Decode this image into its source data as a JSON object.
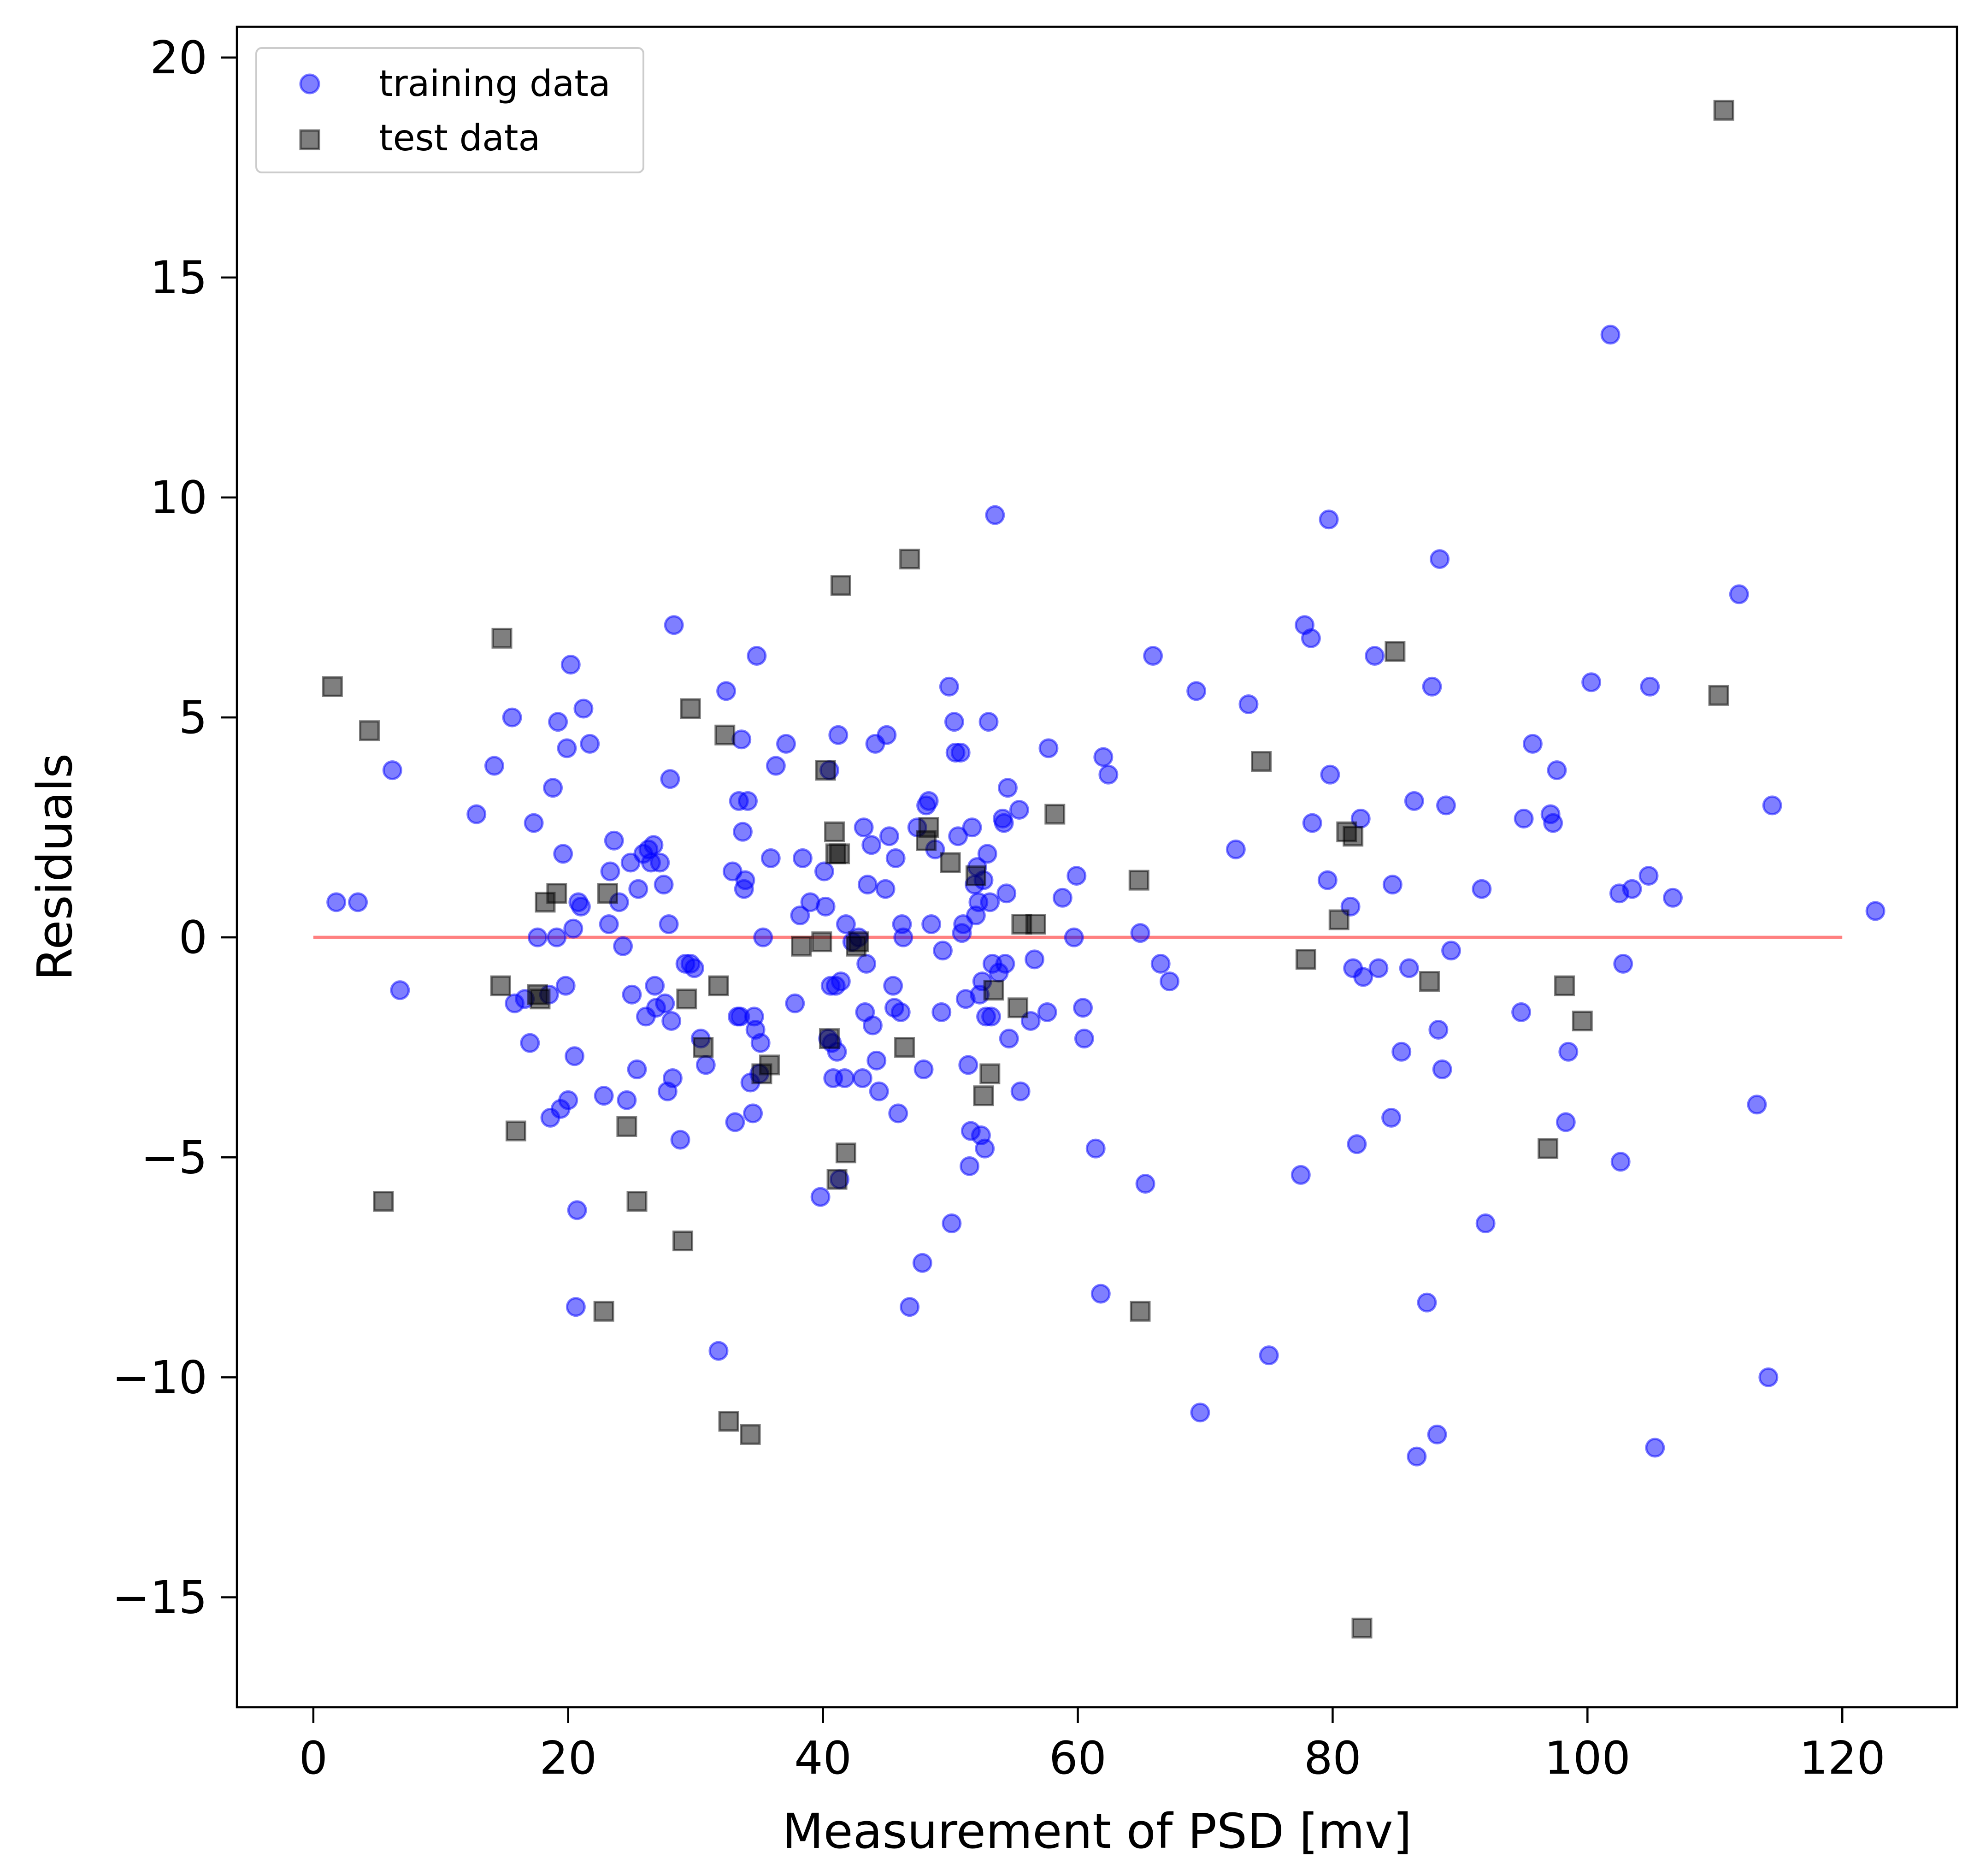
{
  "chart_data": {
    "type": "scatter",
    "title": "",
    "xlabel": "Measurement of PSD [mv]",
    "ylabel": "Residuals",
    "xlim": [
      -6,
      129
    ],
    "ylim": [
      -17.5,
      20.7
    ],
    "xticks": [
      0,
      20,
      40,
      60,
      80,
      100,
      120
    ],
    "yticks": [
      -15,
      -10,
      -5,
      0,
      5,
      10,
      15,
      20
    ],
    "xtick_labels": [
      "0",
      "20",
      "40",
      "60",
      "80",
      "100",
      "120"
    ],
    "ytick_labels": [
      "−15",
      "−10",
      "−5",
      "0",
      "5",
      "10",
      "15",
      "20"
    ],
    "grid": false,
    "legend_position": "top-left",
    "reference_line": {
      "y": 0,
      "x_from": 0,
      "x_to": 120,
      "color": "#ff8080"
    },
    "series": [
      {
        "name": "training data",
        "marker": "circle",
        "color": "#0000ff",
        "points": [
          [
            1.8,
            0.8
          ],
          [
            3.5,
            0.8
          ],
          [
            6.2,
            3.8
          ],
          [
            6.8,
            -1.2
          ],
          [
            12.8,
            2.8
          ],
          [
            14.2,
            3.9
          ],
          [
            15.6,
            5
          ],
          [
            15.8,
            -1.5
          ],
          [
            16.6,
            -1.4
          ],
          [
            17,
            -2.4
          ],
          [
            17.3,
            2.6
          ],
          [
            17.6,
            0
          ],
          [
            18.5,
            -1.3
          ],
          [
            18.6,
            -4.1
          ],
          [
            18.8,
            3.4
          ],
          [
            19.1,
            0
          ],
          [
            19.2,
            4.9
          ],
          [
            19.4,
            -3.9
          ],
          [
            19.6,
            1.9
          ],
          [
            19.8,
            -1.1
          ],
          [
            19.9,
            4.3
          ],
          [
            20,
            -3.7
          ],
          [
            20.2,
            6.2
          ],
          [
            20.4,
            0.2
          ],
          [
            20.5,
            -2.7
          ],
          [
            20.6,
            -8.4
          ],
          [
            20.7,
            -6.2
          ],
          [
            20.8,
            0.8
          ],
          [
            21,
            0.7
          ],
          [
            21.2,
            5.2
          ],
          [
            21.7,
            4.4
          ],
          [
            22.8,
            -3.6
          ],
          [
            23.2,
            0.3
          ],
          [
            23.3,
            1.5
          ],
          [
            23.6,
            2.2
          ],
          [
            24,
            0.8
          ],
          [
            24.3,
            -0.2
          ],
          [
            24.6,
            -3.7
          ],
          [
            24.9,
            1.7
          ],
          [
            25,
            -1.3
          ],
          [
            25.4,
            -3
          ],
          [
            25.5,
            1.1
          ],
          [
            25.9,
            1.9
          ],
          [
            26.1,
            -1.8
          ],
          [
            26.3,
            2
          ],
          [
            26.5,
            1.7
          ],
          [
            26.7,
            2.1
          ],
          [
            26.8,
            -1.1
          ],
          [
            26.9,
            -1.6
          ],
          [
            27.2,
            1.7
          ],
          [
            27.5,
            1.2
          ],
          [
            27.6,
            -1.5
          ],
          [
            27.8,
            -3.5
          ],
          [
            27.9,
            0.3
          ],
          [
            28,
            3.6
          ],
          [
            28.1,
            -1.9
          ],
          [
            28.2,
            -3.2
          ],
          [
            28.3,
            7.1
          ],
          [
            28.8,
            -4.6
          ],
          [
            29.2,
            -0.6
          ],
          [
            29.6,
            -0.6
          ],
          [
            29.9,
            -0.7
          ],
          [
            30.4,
            -2.3
          ],
          [
            30.8,
            -2.9
          ],
          [
            31.8,
            -9.4
          ],
          [
            32.4,
            5.6
          ],
          [
            32.9,
            1.5
          ],
          [
            33.1,
            -4.2
          ],
          [
            33.3,
            -1.8
          ],
          [
            33.4,
            3.1
          ],
          [
            33.5,
            -1.8
          ],
          [
            33.6,
            4.5
          ],
          [
            33.7,
            2.4
          ],
          [
            33.8,
            1.1
          ],
          [
            33.9,
            1.3
          ],
          [
            34.1,
            3.1
          ],
          [
            34.3,
            -3.3
          ],
          [
            34.5,
            -4
          ],
          [
            34.6,
            -1.8
          ],
          [
            34.7,
            -2.1
          ],
          [
            34.8,
            6.4
          ],
          [
            35,
            -3.1
          ],
          [
            35.1,
            -2.4
          ],
          [
            35.3,
            0
          ],
          [
            35.9,
            1.8
          ],
          [
            36.3,
            3.9
          ],
          [
            37.1,
            4.4
          ],
          [
            37.8,
            -1.5
          ],
          [
            38.2,
            0.5
          ],
          [
            38.4,
            1.8
          ],
          [
            39,
            0.8
          ],
          [
            39.8,
            -5.9
          ],
          [
            40.1,
            1.5
          ],
          [
            40.2,
            0.7
          ],
          [
            40.4,
            -2.3
          ],
          [
            40.5,
            3.8
          ],
          [
            40.6,
            -1.1
          ],
          [
            40.7,
            -2.4
          ],
          [
            40.8,
            -3.2
          ],
          [
            41,
            -1.1
          ],
          [
            41.1,
            -2.6
          ],
          [
            41.2,
            4.6
          ],
          [
            41.3,
            -5.5
          ],
          [
            41.4,
            -1
          ],
          [
            41.7,
            -3.2
          ],
          [
            41.8,
            0.3
          ],
          [
            42.3,
            -0.1
          ],
          [
            42.8,
            0
          ],
          [
            43.1,
            -3.2
          ],
          [
            43.2,
            2.5
          ],
          [
            43.3,
            -1.7
          ],
          [
            43.4,
            -0.6
          ],
          [
            43.5,
            1.2
          ],
          [
            43.8,
            2.1
          ],
          [
            43.9,
            -2
          ],
          [
            44.1,
            4.4
          ],
          [
            44.2,
            -2.8
          ],
          [
            44.4,
            -3.5
          ],
          [
            44.9,
            1.1
          ],
          [
            45,
            4.6
          ],
          [
            45.2,
            2.3
          ],
          [
            45.5,
            -1.1
          ],
          [
            45.6,
            -1.6
          ],
          [
            45.7,
            1.8
          ],
          [
            45.9,
            -4
          ],
          [
            46.1,
            -1.7
          ],
          [
            46.2,
            0.3
          ],
          [
            46.3,
            0
          ],
          [
            46.8,
            -8.4
          ],
          [
            47.4,
            2.5
          ],
          [
            47.8,
            -7.4
          ],
          [
            47.9,
            -3
          ],
          [
            48.1,
            3
          ],
          [
            48.3,
            3.1
          ],
          [
            48.5,
            0.3
          ],
          [
            48.8,
            2
          ],
          [
            49.3,
            -1.7
          ],
          [
            49.4,
            -0.3
          ],
          [
            49.9,
            5.7
          ],
          [
            50.1,
            -6.5
          ],
          [
            50.3,
            4.9
          ],
          [
            50.4,
            4.2
          ],
          [
            50.6,
            2.3
          ],
          [
            50.8,
            4.2
          ],
          [
            50.9,
            0.1
          ],
          [
            51,
            0.3
          ],
          [
            51.2,
            -1.4
          ],
          [
            51.4,
            -2.9
          ],
          [
            51.5,
            -5.2
          ],
          [
            51.6,
            -4.4
          ],
          [
            51.7,
            2.5
          ],
          [
            51.9,
            1.2
          ],
          [
            52,
            0.5
          ],
          [
            52.1,
            1.6
          ],
          [
            52.2,
            0.8
          ],
          [
            52.3,
            -1.3
          ],
          [
            52.4,
            -4.5
          ],
          [
            52.5,
            -1
          ],
          [
            52.6,
            1.3
          ],
          [
            52.7,
            -4.8
          ],
          [
            52.8,
            -1.8
          ],
          [
            52.9,
            1.9
          ],
          [
            53,
            4.9
          ],
          [
            53.1,
            0.8
          ],
          [
            53.2,
            -1.8
          ],
          [
            53.3,
            -0.6
          ],
          [
            53.5,
            9.6
          ],
          [
            53.8,
            -0.8
          ],
          [
            54.1,
            2.7
          ],
          [
            54.2,
            2.6
          ],
          [
            54.3,
            -0.6
          ],
          [
            54.4,
            1
          ],
          [
            54.5,
            3.4
          ],
          [
            54.6,
            -2.3
          ],
          [
            55.4,
            2.9
          ],
          [
            55.5,
            -3.5
          ],
          [
            56.3,
            -1.9
          ],
          [
            56.6,
            -0.5
          ],
          [
            57.6,
            -1.7
          ],
          [
            57.7,
            4.3
          ],
          [
            58.8,
            0.9
          ],
          [
            59.7,
            0
          ],
          [
            59.9,
            1.4
          ],
          [
            60.4,
            -1.6
          ],
          [
            60.5,
            -2.3
          ],
          [
            61.4,
            -4.8
          ],
          [
            61.8,
            -8.1
          ],
          [
            62,
            4.1
          ],
          [
            62.4,
            3.7
          ],
          [
            64.9,
            0.1
          ],
          [
            65.3,
            -5.6
          ],
          [
            65.9,
            6.4
          ],
          [
            66.5,
            -0.6
          ],
          [
            67.2,
            -1
          ],
          [
            69.3,
            5.6
          ],
          [
            69.6,
            -10.8
          ],
          [
            72.4,
            2
          ],
          [
            73.4,
            5.3
          ],
          [
            75,
            -9.5
          ],
          [
            77.5,
            -5.4
          ],
          [
            77.8,
            7.1
          ],
          [
            78.3,
            6.8
          ],
          [
            78.4,
            2.6
          ],
          [
            79.6,
            1.3
          ],
          [
            79.7,
            9.5
          ],
          [
            79.8,
            3.7
          ],
          [
            81.4,
            0.7
          ],
          [
            81.6,
            -0.7
          ],
          [
            81.9,
            -4.7
          ],
          [
            82.2,
            2.7
          ],
          [
            82.4,
            -0.9
          ],
          [
            83.3,
            6.4
          ],
          [
            83.6,
            -0.7
          ],
          [
            84.6,
            -4.1
          ],
          [
            84.7,
            1.2
          ],
          [
            85.4,
            -2.6
          ],
          [
            86,
            -0.7
          ],
          [
            86.4,
            3.1
          ],
          [
            86.6,
            -11.8
          ],
          [
            87.4,
            -8.3
          ],
          [
            87.8,
            5.7
          ],
          [
            88.2,
            -11.3
          ],
          [
            88.3,
            -2.1
          ],
          [
            88.4,
            8.6
          ],
          [
            88.6,
            -3
          ],
          [
            88.9,
            3
          ],
          [
            89.3,
            -0.3
          ],
          [
            91.7,
            1.1
          ],
          [
            92,
            -6.5
          ],
          [
            94.8,
            -1.7
          ],
          [
            95,
            2.7
          ],
          [
            95.7,
            4.4
          ],
          [
            97.1,
            2.8
          ],
          [
            97.3,
            2.6
          ],
          [
            97.6,
            3.8
          ],
          [
            98.3,
            -4.2
          ],
          [
            98.5,
            -2.6
          ],
          [
            100.3,
            5.8
          ],
          [
            101.8,
            13.7
          ],
          [
            102.5,
            1
          ],
          [
            102.6,
            -5.1
          ],
          [
            102.8,
            -0.6
          ],
          [
            103.5,
            1.1
          ],
          [
            104.8,
            1.4
          ],
          [
            104.9,
            5.7
          ],
          [
            105.3,
            -11.6
          ],
          [
            106.7,
            0.9
          ],
          [
            111.9,
            7.8
          ],
          [
            113.3,
            -3.8
          ],
          [
            114.2,
            -10
          ],
          [
            114.5,
            3
          ],
          [
            122.6,
            0.6
          ]
        ]
      },
      {
        "name": "test data",
        "marker": "square",
        "color": "#000000",
        "points": [
          [
            1.5,
            5.7
          ],
          [
            4.4,
            4.7
          ],
          [
            5.5,
            -6
          ],
          [
            14.7,
            -1.1
          ],
          [
            14.8,
            6.8
          ],
          [
            15.9,
            -4.4
          ],
          [
            17.6,
            -1.3
          ],
          [
            17.8,
            -1.4
          ],
          [
            18.2,
            0.8
          ],
          [
            19.1,
            1
          ],
          [
            23.1,
            1
          ],
          [
            22.8,
            -8.5
          ],
          [
            24.6,
            -4.3
          ],
          [
            25.4,
            -6
          ],
          [
            29,
            -6.9
          ],
          [
            29.3,
            -1.4
          ],
          [
            29.6,
            5.2
          ],
          [
            30.6,
            -2.5
          ],
          [
            31.8,
            -1.1
          ],
          [
            32.3,
            4.6
          ],
          [
            32.6,
            -11
          ],
          [
            34.3,
            -11.3
          ],
          [
            35.2,
            -3.1
          ],
          [
            35.8,
            -2.9
          ],
          [
            38.3,
            -0.2
          ],
          [
            39.9,
            -0.1
          ],
          [
            40.2,
            3.8
          ],
          [
            40.5,
            -2.3
          ],
          [
            40.9,
            2.4
          ],
          [
            41,
            1.9
          ],
          [
            41.1,
            -5.5
          ],
          [
            41.3,
            1.9
          ],
          [
            41.4,
            8
          ],
          [
            41.8,
            -4.9
          ],
          [
            42.6,
            -0.2
          ],
          [
            42.8,
            -0.1
          ],
          [
            46.4,
            -2.5
          ],
          [
            46.8,
            8.6
          ],
          [
            48.1,
            2.2
          ],
          [
            48.3,
            2.5
          ],
          [
            50,
            1.7
          ],
          [
            52,
            1.4
          ],
          [
            52.6,
            -3.6
          ],
          [
            53.1,
            -3.1
          ],
          [
            53.4,
            -1.2
          ],
          [
            55.3,
            -1.6
          ],
          [
            55.6,
            0.3
          ],
          [
            56.7,
            0.3
          ],
          [
            58.2,
            2.8
          ],
          [
            64.8,
            1.3
          ],
          [
            64.9,
            -8.5
          ],
          [
            74.4,
            4
          ],
          [
            77.9,
            -0.5
          ],
          [
            80.5,
            0.4
          ],
          [
            81.1,
            2.4
          ],
          [
            81.6,
            2.3
          ],
          [
            82.3,
            -15.7
          ],
          [
            84.9,
            6.5
          ],
          [
            87.6,
            -1
          ],
          [
            96.9,
            -4.8
          ],
          [
            98.2,
            -1.1
          ],
          [
            99.6,
            -1.9
          ],
          [
            110.3,
            5.5
          ],
          [
            110.7,
            18.8
          ]
        ]
      }
    ]
  }
}
